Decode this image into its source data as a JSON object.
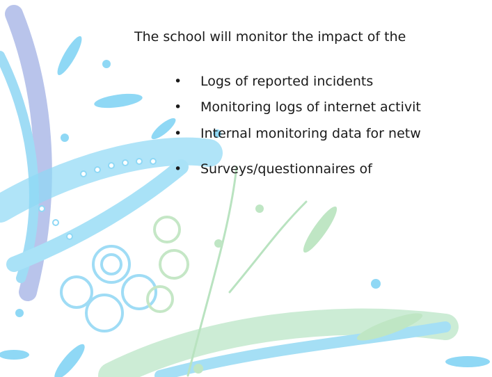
{
  "paragraph": "The school will monitor the impact of the",
  "bullets": [
    "Logs of reported incidents",
    "Monitoring logs of internet activit",
    "Internal monitoring data for netw",
    "Surveys/questionnaires of"
  ]
}
